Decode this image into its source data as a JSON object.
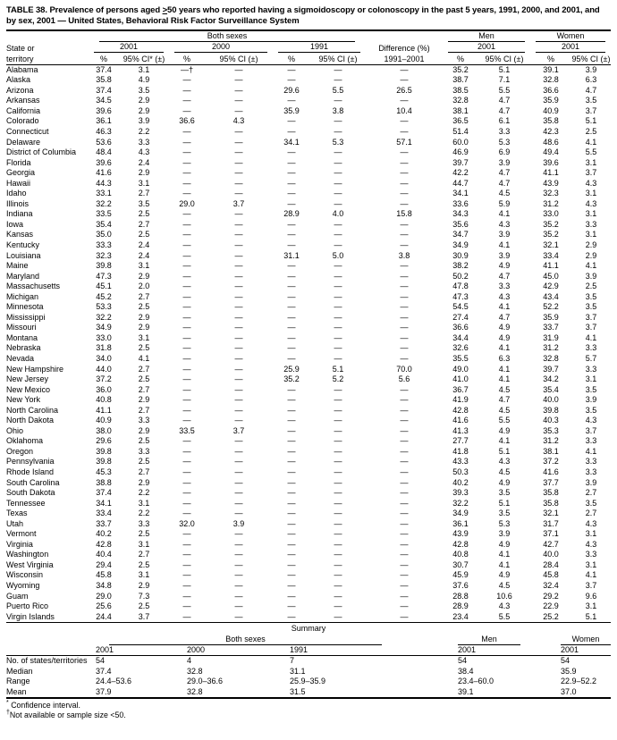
{
  "title": {
    "part1": "TABLE 38. Prevalence of persons aged ",
    "geq": ">",
    "part2": "50 years who reported having a sigmoidoscopy or colonoscopy in the past 5 years, 1991, 2000, and 2001, and by sex, 2001 — United States, Behavioral Risk Factor Surveillance System"
  },
  "header": {
    "state_line1": "State or",
    "state_line2": "territory",
    "both_sexes": "Both sexes",
    "men": "Men",
    "women": "Women",
    "y2001": "2001",
    "y2000": "2000",
    "y1991": "1991",
    "men_year": "2001",
    "women_year": "2001",
    "pct": "%",
    "ci_star": "95% CI* (±)",
    "ci": "95% CI (±)",
    "diff1": "Difference (%)",
    "diff2": "1991–2001"
  },
  "rows": [
    {
      "state": "Alabama",
      "p01": "37.4",
      "c01": "3.1",
      "p00": "—†",
      "c00": "—",
      "p91": "—",
      "c91": "—",
      "diff": "—",
      "pm": "35.2",
      "cm": "5.1",
      "pw": "39.1",
      "cw": "3.9"
    },
    {
      "state": "Alaska",
      "p01": "35.8",
      "c01": "4.9",
      "p00": "—",
      "c00": "—",
      "p91": "—",
      "c91": "—",
      "diff": "—",
      "pm": "38.7",
      "cm": "7.1",
      "pw": "32.8",
      "cw": "6.3"
    },
    {
      "state": "Arizona",
      "p01": "37.4",
      "c01": "3.5",
      "p00": "—",
      "c00": "—",
      "p91": "29.6",
      "c91": "5.5",
      "diff": "26.5",
      "pm": "38.5",
      "cm": "5.5",
      "pw": "36.6",
      "cw": "4.7"
    },
    {
      "state": "Arkansas",
      "p01": "34.5",
      "c01": "2.9",
      "p00": "—",
      "c00": "—",
      "p91": "—",
      "c91": "—",
      "diff": "—",
      "pm": "32.8",
      "cm": "4.7",
      "pw": "35.9",
      "cw": "3.5"
    },
    {
      "state": "California",
      "p01": "39.6",
      "c01": "2.9",
      "p00": "—",
      "c00": "—",
      "p91": "35.9",
      "c91": "3.8",
      "diff": "10.4",
      "pm": "38.1",
      "cm": "4.7",
      "pw": "40.9",
      "cw": "3.7"
    },
    {
      "state": "Colorado",
      "p01": "36.1",
      "c01": "3.9",
      "p00": "36.6",
      "c00": "4.3",
      "p91": "—",
      "c91": "—",
      "diff": "—",
      "pm": "36.5",
      "cm": "6.1",
      "pw": "35.8",
      "cw": "5.1"
    },
    {
      "state": "Connecticut",
      "p01": "46.3",
      "c01": "2.2",
      "p00": "—",
      "c00": "—",
      "p91": "—",
      "c91": "—",
      "diff": "—",
      "pm": "51.4",
      "cm": "3.3",
      "pw": "42.3",
      "cw": "2.5"
    },
    {
      "state": "Delaware",
      "p01": "53.6",
      "c01": "3.3",
      "p00": "—",
      "c00": "—",
      "p91": "34.1",
      "c91": "5.3",
      "diff": "57.1",
      "pm": "60.0",
      "cm": "5.3",
      "pw": "48.6",
      "cw": "4.1"
    },
    {
      "state": "District of Columbia",
      "p01": "48.4",
      "c01": "4.3",
      "p00": "—",
      "c00": "—",
      "p91": "—",
      "c91": "—",
      "diff": "—",
      "pm": "46.9",
      "cm": "6.9",
      "pw": "49.4",
      "cw": "5.5"
    },
    {
      "state": "Florida",
      "p01": "39.6",
      "c01": "2.4",
      "p00": "—",
      "c00": "—",
      "p91": "—",
      "c91": "—",
      "diff": "—",
      "pm": "39.7",
      "cm": "3.9",
      "pw": "39.6",
      "cw": "3.1"
    },
    {
      "state": "Georgia",
      "p01": "41.6",
      "c01": "2.9",
      "p00": "—",
      "c00": "—",
      "p91": "—",
      "c91": "—",
      "diff": "—",
      "pm": "42.2",
      "cm": "4.7",
      "pw": "41.1",
      "cw": "3.7"
    },
    {
      "state": "Hawaii",
      "p01": "44.3",
      "c01": "3.1",
      "p00": "—",
      "c00": "—",
      "p91": "—",
      "c91": "—",
      "diff": "—",
      "pm": "44.7",
      "cm": "4.7",
      "pw": "43.9",
      "cw": "4.3"
    },
    {
      "state": "Idaho",
      "p01": "33.1",
      "c01": "2.7",
      "p00": "—",
      "c00": "—",
      "p91": "—",
      "c91": "—",
      "diff": "—",
      "pm": "34.1",
      "cm": "4.5",
      "pw": "32.3",
      "cw": "3.1"
    },
    {
      "state": "Illinois",
      "p01": "32.2",
      "c01": "3.5",
      "p00": "29.0",
      "c00": "3.7",
      "p91": "—",
      "c91": "—",
      "diff": "—",
      "pm": "33.6",
      "cm": "5.9",
      "pw": "31.2",
      "cw": "4.3"
    },
    {
      "state": "Indiana",
      "p01": "33.5",
      "c01": "2.5",
      "p00": "—",
      "c00": "—",
      "p91": "28.9",
      "c91": "4.0",
      "diff": "15.8",
      "pm": "34.3",
      "cm": "4.1",
      "pw": "33.0",
      "cw": "3.1"
    },
    {
      "state": "Iowa",
      "p01": "35.4",
      "c01": "2.7",
      "p00": "—",
      "c00": "—",
      "p91": "—",
      "c91": "—",
      "diff": "—",
      "pm": "35.6",
      "cm": "4.3",
      "pw": "35.2",
      "cw": "3.3"
    },
    {
      "state": "Kansas",
      "p01": "35.0",
      "c01": "2.5",
      "p00": "—",
      "c00": "—",
      "p91": "—",
      "c91": "—",
      "diff": "—",
      "pm": "34.7",
      "cm": "3.9",
      "pw": "35.2",
      "cw": "3.1"
    },
    {
      "state": "Kentucky",
      "p01": "33.3",
      "c01": "2.4",
      "p00": "—",
      "c00": "—",
      "p91": "—",
      "c91": "—",
      "diff": "—",
      "pm": "34.9",
      "cm": "4.1",
      "pw": "32.1",
      "cw": "2.9"
    },
    {
      "state": "Louisiana",
      "p01": "32.3",
      "c01": "2.4",
      "p00": "—",
      "c00": "—",
      "p91": "31.1",
      "c91": "5.0",
      "diff": "3.8",
      "pm": "30.9",
      "cm": "3.9",
      "pw": "33.4",
      "cw": "2.9"
    },
    {
      "state": "Maine",
      "p01": "39.8",
      "c01": "3.1",
      "p00": "—",
      "c00": "—",
      "p91": "—",
      "c91": "—",
      "diff": "—",
      "pm": "38.2",
      "cm": "4.9",
      "pw": "41.1",
      "cw": "4.1"
    },
    {
      "state": "Maryland",
      "p01": "47.3",
      "c01": "2.9",
      "p00": "—",
      "c00": "—",
      "p91": "—",
      "c91": "—",
      "diff": "—",
      "pm": "50.2",
      "cm": "4.7",
      "pw": "45.0",
      "cw": "3.9"
    },
    {
      "state": "Massachusetts",
      "p01": "45.1",
      "c01": "2.0",
      "p00": "—",
      "c00": "—",
      "p91": "—",
      "c91": "—",
      "diff": "—",
      "pm": "47.8",
      "cm": "3.3",
      "pw": "42.9",
      "cw": "2.5"
    },
    {
      "state": "Michigan",
      "p01": "45.2",
      "c01": "2.7",
      "p00": "—",
      "c00": "—",
      "p91": "—",
      "c91": "—",
      "diff": "—",
      "pm": "47.3",
      "cm": "4.3",
      "pw": "43.4",
      "cw": "3.5"
    },
    {
      "state": "Minnesota",
      "p01": "53.3",
      "c01": "2.5",
      "p00": "—",
      "c00": "—",
      "p91": "—",
      "c91": "—",
      "diff": "—",
      "pm": "54.5",
      "cm": "4.1",
      "pw": "52.2",
      "cw": "3.5"
    },
    {
      "state": "Mississippi",
      "p01": "32.2",
      "c01": "2.9",
      "p00": "—",
      "c00": "—",
      "p91": "—",
      "c91": "—",
      "diff": "—",
      "pm": "27.4",
      "cm": "4.7",
      "pw": "35.9",
      "cw": "3.7"
    },
    {
      "state": "Missouri",
      "p01": "34.9",
      "c01": "2.9",
      "p00": "—",
      "c00": "—",
      "p91": "—",
      "c91": "—",
      "diff": "—",
      "pm": "36.6",
      "cm": "4.9",
      "pw": "33.7",
      "cw": "3.7"
    },
    {
      "state": "Montana",
      "p01": "33.0",
      "c01": "3.1",
      "p00": "—",
      "c00": "—",
      "p91": "—",
      "c91": "—",
      "diff": "—",
      "pm": "34.4",
      "cm": "4.9",
      "pw": "31.9",
      "cw": "4.1"
    },
    {
      "state": "Nebraska",
      "p01": "31.8",
      "c01": "2.5",
      "p00": "—",
      "c00": "—",
      "p91": "—",
      "c91": "—",
      "diff": "—",
      "pm": "32.6",
      "cm": "4.1",
      "pw": "31.2",
      "cw": "3.3"
    },
    {
      "state": "Nevada",
      "p01": "34.0",
      "c01": "4.1",
      "p00": "—",
      "c00": "—",
      "p91": "—",
      "c91": "—",
      "diff": "—",
      "pm": "35.5",
      "cm": "6.3",
      "pw": "32.8",
      "cw": "5.7"
    },
    {
      "state": "New Hampshire",
      "p01": "44.0",
      "c01": "2.7",
      "p00": "—",
      "c00": "—",
      "p91": "25.9",
      "c91": "5.1",
      "diff": "70.0",
      "pm": "49.0",
      "cm": "4.1",
      "pw": "39.7",
      "cw": "3.3"
    },
    {
      "state": "New Jersey",
      "p01": "37.2",
      "c01": "2.5",
      "p00": "—",
      "c00": "—",
      "p91": "35.2",
      "c91": "5.2",
      "diff": "5.6",
      "pm": "41.0",
      "cm": "4.1",
      "pw": "34.2",
      "cw": "3.1"
    },
    {
      "state": "New Mexico",
      "p01": "36.0",
      "c01": "2.7",
      "p00": "—",
      "c00": "—",
      "p91": "—",
      "c91": "—",
      "diff": "—",
      "pm": "36.7",
      "cm": "4.5",
      "pw": "35.4",
      "cw": "3.5"
    },
    {
      "state": "New York",
      "p01": "40.8",
      "c01": "2.9",
      "p00": "—",
      "c00": "—",
      "p91": "—",
      "c91": "—",
      "diff": "—",
      "pm": "41.9",
      "cm": "4.7",
      "pw": "40.0",
      "cw": "3.9"
    },
    {
      "state": "North Carolina",
      "p01": "41.1",
      "c01": "2.7",
      "p00": "—",
      "c00": "—",
      "p91": "—",
      "c91": "—",
      "diff": "—",
      "pm": "42.8",
      "cm": "4.5",
      "pw": "39.8",
      "cw": "3.5"
    },
    {
      "state": "North Dakota",
      "p01": "40.9",
      "c01": "3.3",
      "p00": "—",
      "c00": "—",
      "p91": "—",
      "c91": "—",
      "diff": "—",
      "pm": "41.6",
      "cm": "5.5",
      "pw": "40.3",
      "cw": "4.3"
    },
    {
      "state": "Ohio",
      "p01": "38.0",
      "c01": "2.9",
      "p00": "33.5",
      "c00": "3.7",
      "p91": "—",
      "c91": "—",
      "diff": "—",
      "pm": "41.3",
      "cm": "4.9",
      "pw": "35.3",
      "cw": "3.7"
    },
    {
      "state": "Oklahoma",
      "p01": "29.6",
      "c01": "2.5",
      "p00": "—",
      "c00": "—",
      "p91": "—",
      "c91": "—",
      "diff": "—",
      "pm": "27.7",
      "cm": "4.1",
      "pw": "31.2",
      "cw": "3.3"
    },
    {
      "state": "Oregon",
      "p01": "39.8",
      "c01": "3.3",
      "p00": "—",
      "c00": "—",
      "p91": "—",
      "c91": "—",
      "diff": "—",
      "pm": "41.8",
      "cm": "5.1",
      "pw": "38.1",
      "cw": "4.1"
    },
    {
      "state": "Pennsylvania",
      "p01": "39.8",
      "c01": "2.5",
      "p00": "—",
      "c00": "—",
      "p91": "—",
      "c91": "—",
      "diff": "—",
      "pm": "43.3",
      "cm": "4.3",
      "pw": "37.2",
      "cw": "3.3"
    },
    {
      "state": "Rhode Island",
      "p01": "45.3",
      "c01": "2.7",
      "p00": "—",
      "c00": "—",
      "p91": "—",
      "c91": "—",
      "diff": "—",
      "pm": "50.3",
      "cm": "4.5",
      "pw": "41.6",
      "cw": "3.3"
    },
    {
      "state": "South Carolina",
      "p01": "38.8",
      "c01": "2.9",
      "p00": "—",
      "c00": "—",
      "p91": "—",
      "c91": "—",
      "diff": "—",
      "pm": "40.2",
      "cm": "4.9",
      "pw": "37.7",
      "cw": "3.9"
    },
    {
      "state": "South Dakota",
      "p01": "37.4",
      "c01": "2.2",
      "p00": "—",
      "c00": "—",
      "p91": "—",
      "c91": "—",
      "diff": "—",
      "pm": "39.3",
      "cm": "3.5",
      "pw": "35.8",
      "cw": "2.7"
    },
    {
      "state": "Tennessee",
      "p01": "34.1",
      "c01": "3.1",
      "p00": "—",
      "c00": "—",
      "p91": "—",
      "c91": "—",
      "diff": "—",
      "pm": "32.2",
      "cm": "5.1",
      "pw": "35.8",
      "cw": "3.5"
    },
    {
      "state": "Texas",
      "p01": "33.4",
      "c01": "2.2",
      "p00": "—",
      "c00": "—",
      "p91": "—",
      "c91": "—",
      "diff": "—",
      "pm": "34.9",
      "cm": "3.5",
      "pw": "32.1",
      "cw": "2.7"
    },
    {
      "state": "Utah",
      "p01": "33.7",
      "c01": "3.3",
      "p00": "32.0",
      "c00": "3.9",
      "p91": "—",
      "c91": "—",
      "diff": "—",
      "pm": "36.1",
      "cm": "5.3",
      "pw": "31.7",
      "cw": "4.3"
    },
    {
      "state": "Vermont",
      "p01": "40.2",
      "c01": "2.5",
      "p00": "—",
      "c00": "—",
      "p91": "—",
      "c91": "—",
      "diff": "—",
      "pm": "43.9",
      "cm": "3.9",
      "pw": "37.1",
      "cw": "3.1"
    },
    {
      "state": "Virginia",
      "p01": "42.8",
      "c01": "3.1",
      "p00": "—",
      "c00": "—",
      "p91": "—",
      "c91": "—",
      "diff": "—",
      "pm": "42.8",
      "cm": "4.9",
      "pw": "42.7",
      "cw": "4.3"
    },
    {
      "state": "Washington",
      "p01": "40.4",
      "c01": "2.7",
      "p00": "—",
      "c00": "—",
      "p91": "—",
      "c91": "—",
      "diff": "—",
      "pm": "40.8",
      "cm": "4.1",
      "pw": "40.0",
      "cw": "3.3"
    },
    {
      "state": "West Virginia",
      "p01": "29.4",
      "c01": "2.5",
      "p00": "—",
      "c00": "—",
      "p91": "—",
      "c91": "—",
      "diff": "—",
      "pm": "30.7",
      "cm": "4.1",
      "pw": "28.4",
      "cw": "3.1"
    },
    {
      "state": "Wisconsin",
      "p01": "45.8",
      "c01": "3.1",
      "p00": "—",
      "c00": "—",
      "p91": "—",
      "c91": "—",
      "diff": "—",
      "pm": "45.9",
      "cm": "4.9",
      "pw": "45.8",
      "cw": "4.1"
    },
    {
      "state": "Wyoming",
      "p01": "34.8",
      "c01": "2.9",
      "p00": "—",
      "c00": "—",
      "p91": "—",
      "c91": "—",
      "diff": "—",
      "pm": "37.6",
      "cm": "4.5",
      "pw": "32.4",
      "cw": "3.7"
    },
    {
      "state": "Guam",
      "p01": "29.0",
      "c01": "7.3",
      "p00": "—",
      "c00": "—",
      "p91": "—",
      "c91": "—",
      "diff": "—",
      "pm": "28.8",
      "cm": "10.6",
      "pw": "29.2",
      "cw": "9.6"
    },
    {
      "state": "Puerto Rico",
      "p01": "25.6",
      "c01": "2.5",
      "p00": "—",
      "c00": "—",
      "p91": "—",
      "c91": "—",
      "diff": "—",
      "pm": "28.9",
      "cm": "4.3",
      "pw": "22.9",
      "cw": "3.1"
    },
    {
      "state": "Virgin Islands",
      "p01": "24.4",
      "c01": "3.7",
      "p00": "—",
      "c00": "—",
      "p91": "—",
      "c91": "—",
      "diff": "—",
      "pm": "23.4",
      "cm": "5.5",
      "pw": "25.2",
      "cw": "5.1"
    }
  ],
  "summary": {
    "heading": "Summary",
    "both_sexes": "Both sexes",
    "men": "Men",
    "women": "Women",
    "years": {
      "b1": "2001",
      "b2": "2000",
      "b3": "1991",
      "m": "2001",
      "w": "2001"
    },
    "rows": [
      {
        "label": "No. of states/territories",
        "b01": "54",
        "b00": "4",
        "b91": "7",
        "sp": "",
        "m01": "54",
        "w01": "54"
      },
      {
        "label": "Median",
        "b01": "37.4",
        "b00": "32.8",
        "b91": "31.1",
        "sp": "",
        "m01": "38.4",
        "w01": "35.9"
      },
      {
        "label": "Range",
        "b01": "24.4–53.6",
        "b00": "29.0–36.6",
        "b91": "25.9–35.9",
        "sp": "",
        "m01": "23.4–60.0",
        "w01": "22.9–52.2"
      },
      {
        "label": "Mean",
        "b01": "37.9",
        "b00": "32.8",
        "b91": "31.5",
        "sp": "",
        "m01": "39.1",
        "w01": "37.0"
      }
    ]
  },
  "footnotes": [
    {
      "marker": "*",
      "text": "Confidence interval."
    },
    {
      "marker": "†",
      "text": "Not available or sample size <50."
    }
  ]
}
